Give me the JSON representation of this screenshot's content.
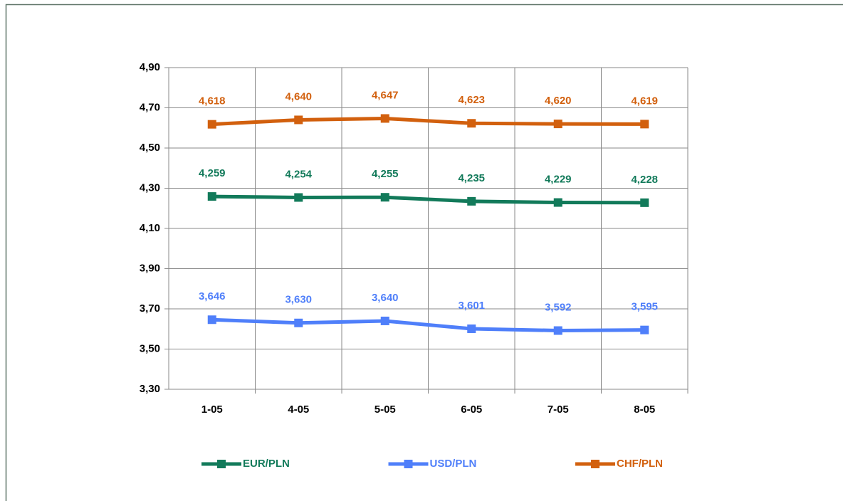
{
  "chart_data": {
    "type": "line",
    "categories": [
      "1-05",
      "4-05",
      "5-05",
      "6-05",
      "7-05",
      "8-05"
    ],
    "series": [
      {
        "name": "EUR/PLN",
        "color": "#127a5a",
        "values": [
          4.259,
          4.254,
          4.255,
          4.235,
          4.229,
          4.228
        ],
        "value_labels": [
          "4,259",
          "4,254",
          "4,255",
          "4,235",
          "4,229",
          "4,228"
        ]
      },
      {
        "name": "USD/PLN",
        "color": "#4f7ffa",
        "values": [
          3.646,
          3.63,
          3.64,
          3.601,
          3.592,
          3.595
        ],
        "value_labels": [
          "3,646",
          "3,630",
          "3,640",
          "3,601",
          "3,592",
          "3,595"
        ]
      },
      {
        "name": "CHF/PLN",
        "color": "#d2600e",
        "values": [
          4.618,
          4.64,
          4.647,
          4.623,
          4.62,
          4.619
        ],
        "value_labels": [
          "4,618",
          "4,640",
          "4,647",
          "4,623",
          "4,620",
          "4,619"
        ]
      }
    ],
    "ylim": [
      3.3,
      4.9
    ],
    "yticks": [
      {
        "value": 3.3,
        "label": "3,30"
      },
      {
        "value": 3.5,
        "label": "3,50"
      },
      {
        "value": 3.7,
        "label": "3,70"
      },
      {
        "value": 3.9,
        "label": "3,90"
      },
      {
        "value": 4.1,
        "label": "4,10"
      },
      {
        "value": 4.3,
        "label": "4,30"
      },
      {
        "value": 4.5,
        "label": "4,50"
      },
      {
        "value": 4.7,
        "label": "4,70"
      },
      {
        "value": 4.9,
        "label": "4,90"
      }
    ],
    "grid": true,
    "legend": "bottom"
  }
}
